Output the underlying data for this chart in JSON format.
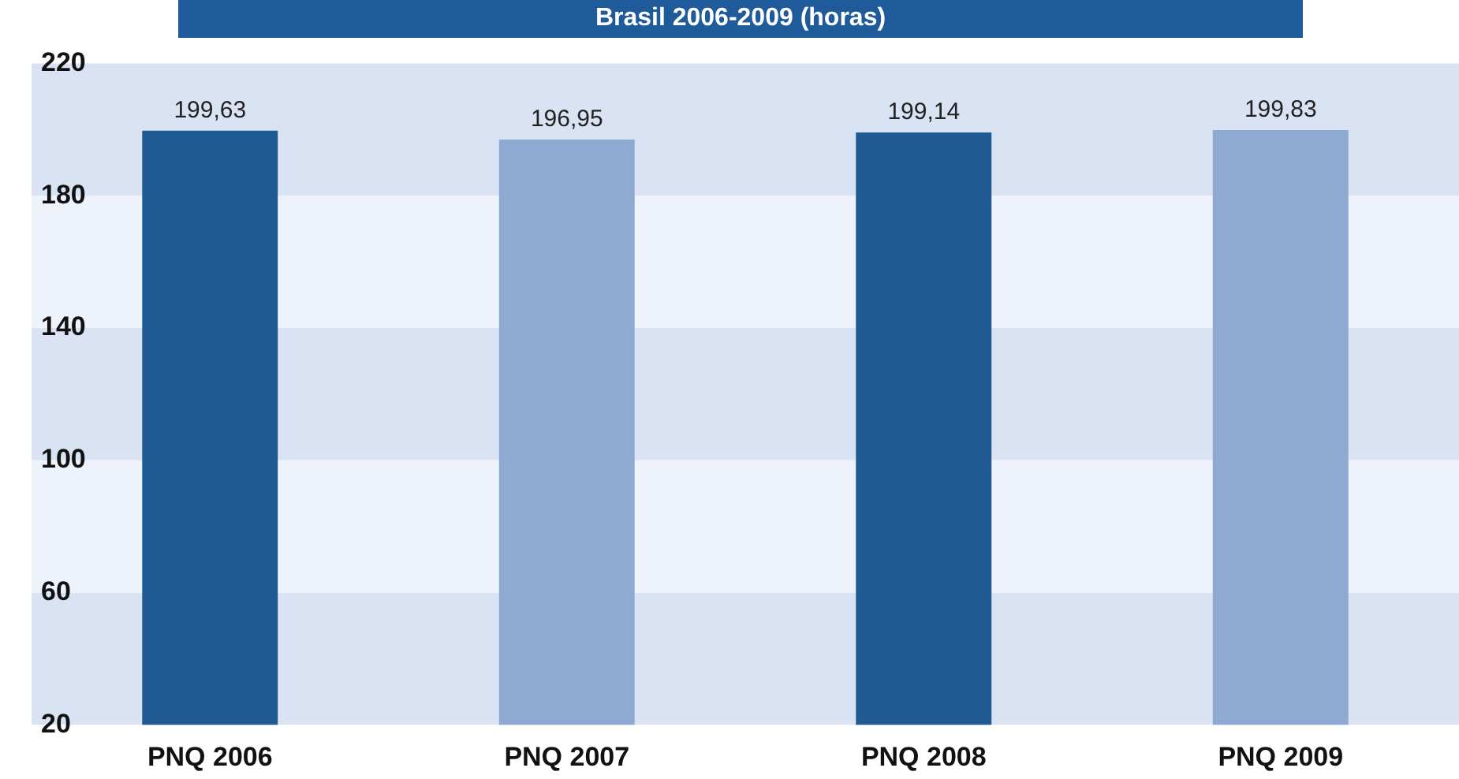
{
  "chart_data": {
    "type": "bar",
    "title": "Brasil 2006-2009 (horas)",
    "categories": [
      "PNQ 2006",
      "PNQ 2007",
      "PNQ 2008",
      "PNQ 2009"
    ],
    "values": [
      199.63,
      196.95,
      199.14,
      199.83
    ],
    "colors": [
      "#1f5b92",
      "#8eaad3",
      "#1f5b92",
      "#8eaad3"
    ],
    "value_labels": [
      "199,63",
      "196,95",
      "199,14",
      "199,83"
    ],
    "ylim": [
      20,
      220
    ],
    "yticks": [
      20,
      60,
      100,
      140,
      180,
      220
    ],
    "legend": false,
    "bands": [
      {
        "axis": "y",
        "from": 20,
        "to": 60,
        "color": "#dae3f3"
      },
      {
        "axis": "y",
        "from": 60,
        "to": 100,
        "color": "#eef2fa"
      },
      {
        "axis": "y",
        "from": 100,
        "to": 140,
        "color": "#dae3f3"
      },
      {
        "axis": "y",
        "from": 140,
        "to": 180,
        "color": "#eef2fa"
      },
      {
        "axis": "y",
        "from": 180,
        "to": 220,
        "color": "#dae3f3"
      }
    ]
  }
}
